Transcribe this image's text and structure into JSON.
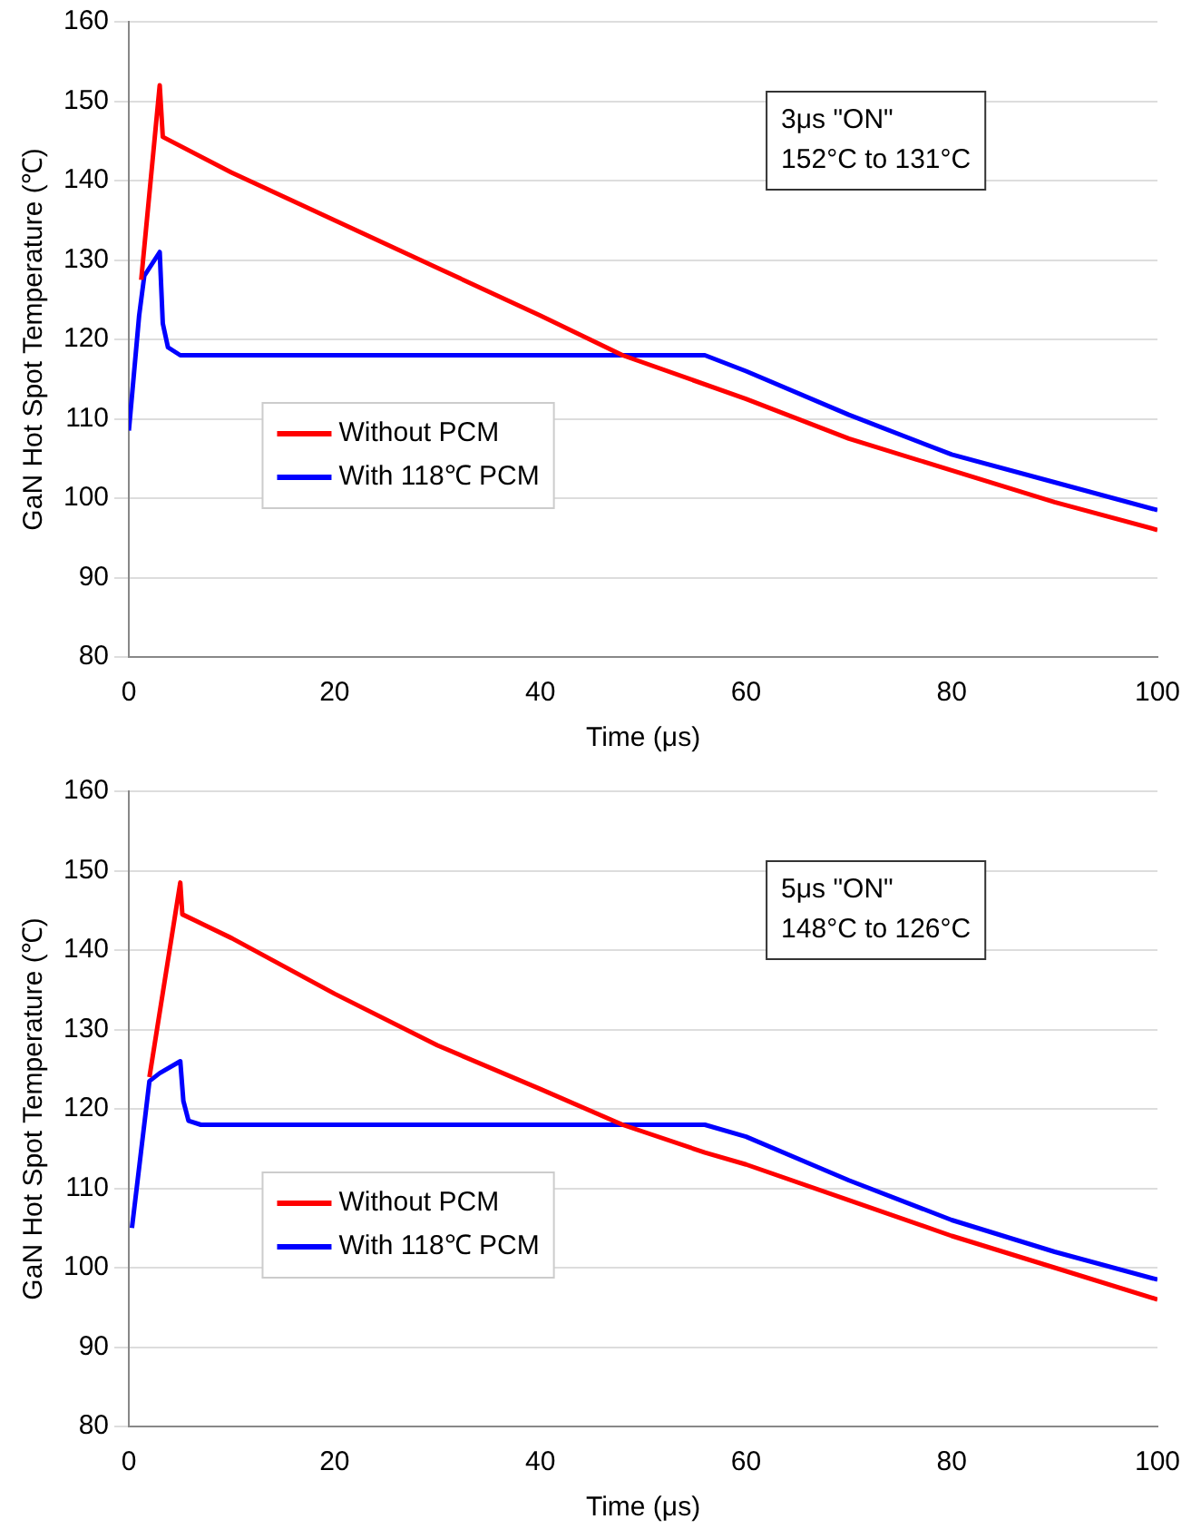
{
  "chart_data": [
    {
      "type": "line",
      "xlabel": "Time (μs)",
      "ylabel": "GaN Hot Spot Temperature (℃)",
      "xlim": [
        0,
        100
      ],
      "xticks": [
        0,
        20,
        40,
        60,
        80,
        100
      ],
      "ylim": [
        80,
        160
      ],
      "yticks": [
        80,
        90,
        100,
        110,
        120,
        130,
        140,
        150,
        160
      ],
      "grid": "y",
      "legend": "bottom left",
      "marker": "none",
      "line_style": "solid",
      "annotations": [
        "3μs \"ON\"",
        "152°C to 131°C"
      ],
      "series": [
        {
          "name": "Without PCM",
          "color": "#ff0000",
          "x": [
            1.2,
            3,
            3.3,
            10,
            20,
            30,
            40,
            48,
            60,
            70,
            80,
            90,
            100
          ],
          "values": [
            127.5,
            152,
            145.5,
            141,
            135,
            129,
            123,
            118,
            112.5,
            107.5,
            103.5,
            99.5,
            96
          ]
        },
        {
          "name": "With 118℃ PCM",
          "color": "#0000ff",
          "x": [
            0,
            1,
            1.5,
            2.5,
            3,
            3.3,
            3.8,
            5,
            56,
            60,
            70,
            80,
            90,
            100
          ],
          "values": [
            108.5,
            123,
            128,
            130,
            131,
            122,
            119,
            118,
            118,
            116,
            110.5,
            105.5,
            102,
            98.5
          ]
        }
      ]
    },
    {
      "type": "line",
      "xlabel": "Time (μs)",
      "ylabel": "GaN Hot Spot Temperature (℃)",
      "xlim": [
        0,
        100
      ],
      "xticks": [
        0,
        20,
        40,
        60,
        80,
        100
      ],
      "ylim": [
        80,
        160
      ],
      "yticks": [
        80,
        90,
        100,
        110,
        120,
        130,
        140,
        150,
        160
      ],
      "grid": "y",
      "legend": "bottom left",
      "marker": "none",
      "line_style": "solid",
      "annotations": [
        "5μs \"ON\"",
        "148°C to 126°C"
      ],
      "series": [
        {
          "name": "Without PCM",
          "color": "#ff0000",
          "x": [
            2,
            5,
            5.2,
            10,
            20,
            30,
            40,
            48,
            56,
            60,
            70,
            80,
            90,
            100
          ],
          "values": [
            124,
            148.5,
            144.5,
            141.5,
            134.5,
            128,
            122.5,
            118,
            114.5,
            113,
            108.5,
            104,
            100,
            96
          ]
        },
        {
          "name": "With 118℃ PCM",
          "color": "#0000ff",
          "x": [
            0.3,
            2,
            3,
            5,
            5.3,
            5.8,
            7,
            56,
            60,
            70,
            80,
            90,
            100
          ],
          "values": [
            105,
            123.5,
            124.5,
            126,
            121,
            118.5,
            118,
            118,
            116.5,
            111,
            106,
            102,
            98.5
          ]
        }
      ]
    }
  ]
}
